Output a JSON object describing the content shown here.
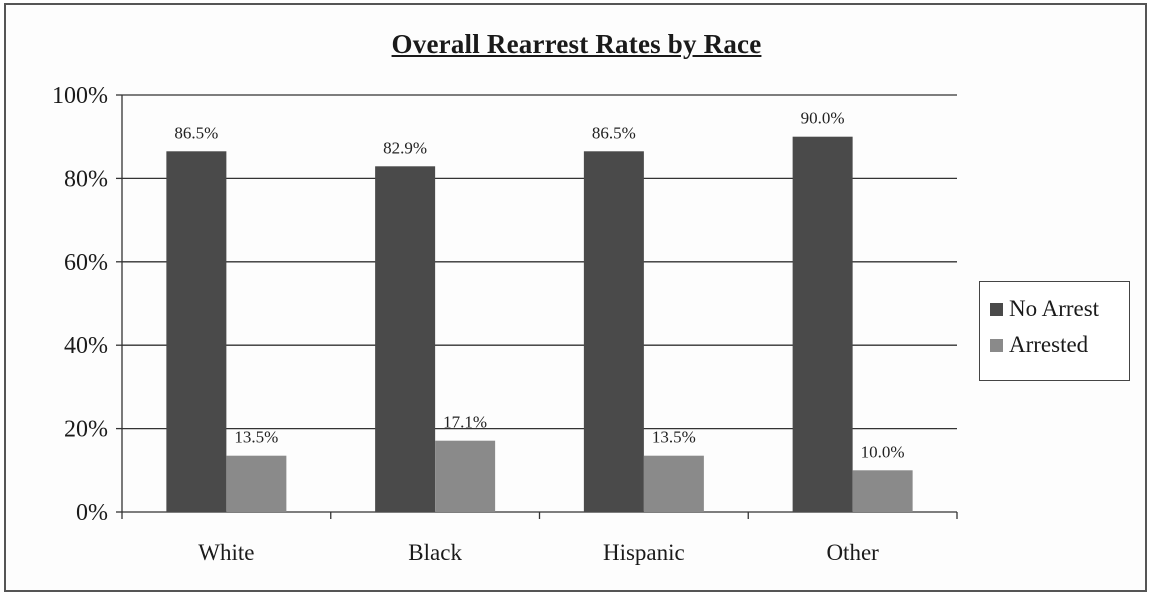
{
  "chart_data": {
    "type": "bar",
    "title": "Overall Rearrest Rates by Race",
    "xlabel": "",
    "ylabel": "",
    "categories": [
      "White",
      "Black",
      "Hispanic",
      "Other"
    ],
    "series": [
      {
        "name": "No Arrest",
        "values": [
          86.5,
          82.9,
          86.5,
          90.0
        ],
        "labels": [
          "86.5%",
          "82.9%",
          "86.5%",
          "90.0%"
        ],
        "color": "#4a4a4a"
      },
      {
        "name": "Arrested",
        "values": [
          13.5,
          17.1,
          13.5,
          10.0
        ],
        "labels": [
          "13.5%",
          "17.1%",
          "13.5%",
          "10.0%"
        ],
        "color": "#8a8a8a"
      }
    ],
    "ylim": [
      0,
      100
    ],
    "yticks": [
      0,
      20,
      40,
      60,
      80,
      100
    ],
    "ytick_labels": [
      "0%",
      "20%",
      "40%",
      "60%",
      "80%",
      "100%"
    ],
    "grid": true,
    "legend_position": "right"
  }
}
